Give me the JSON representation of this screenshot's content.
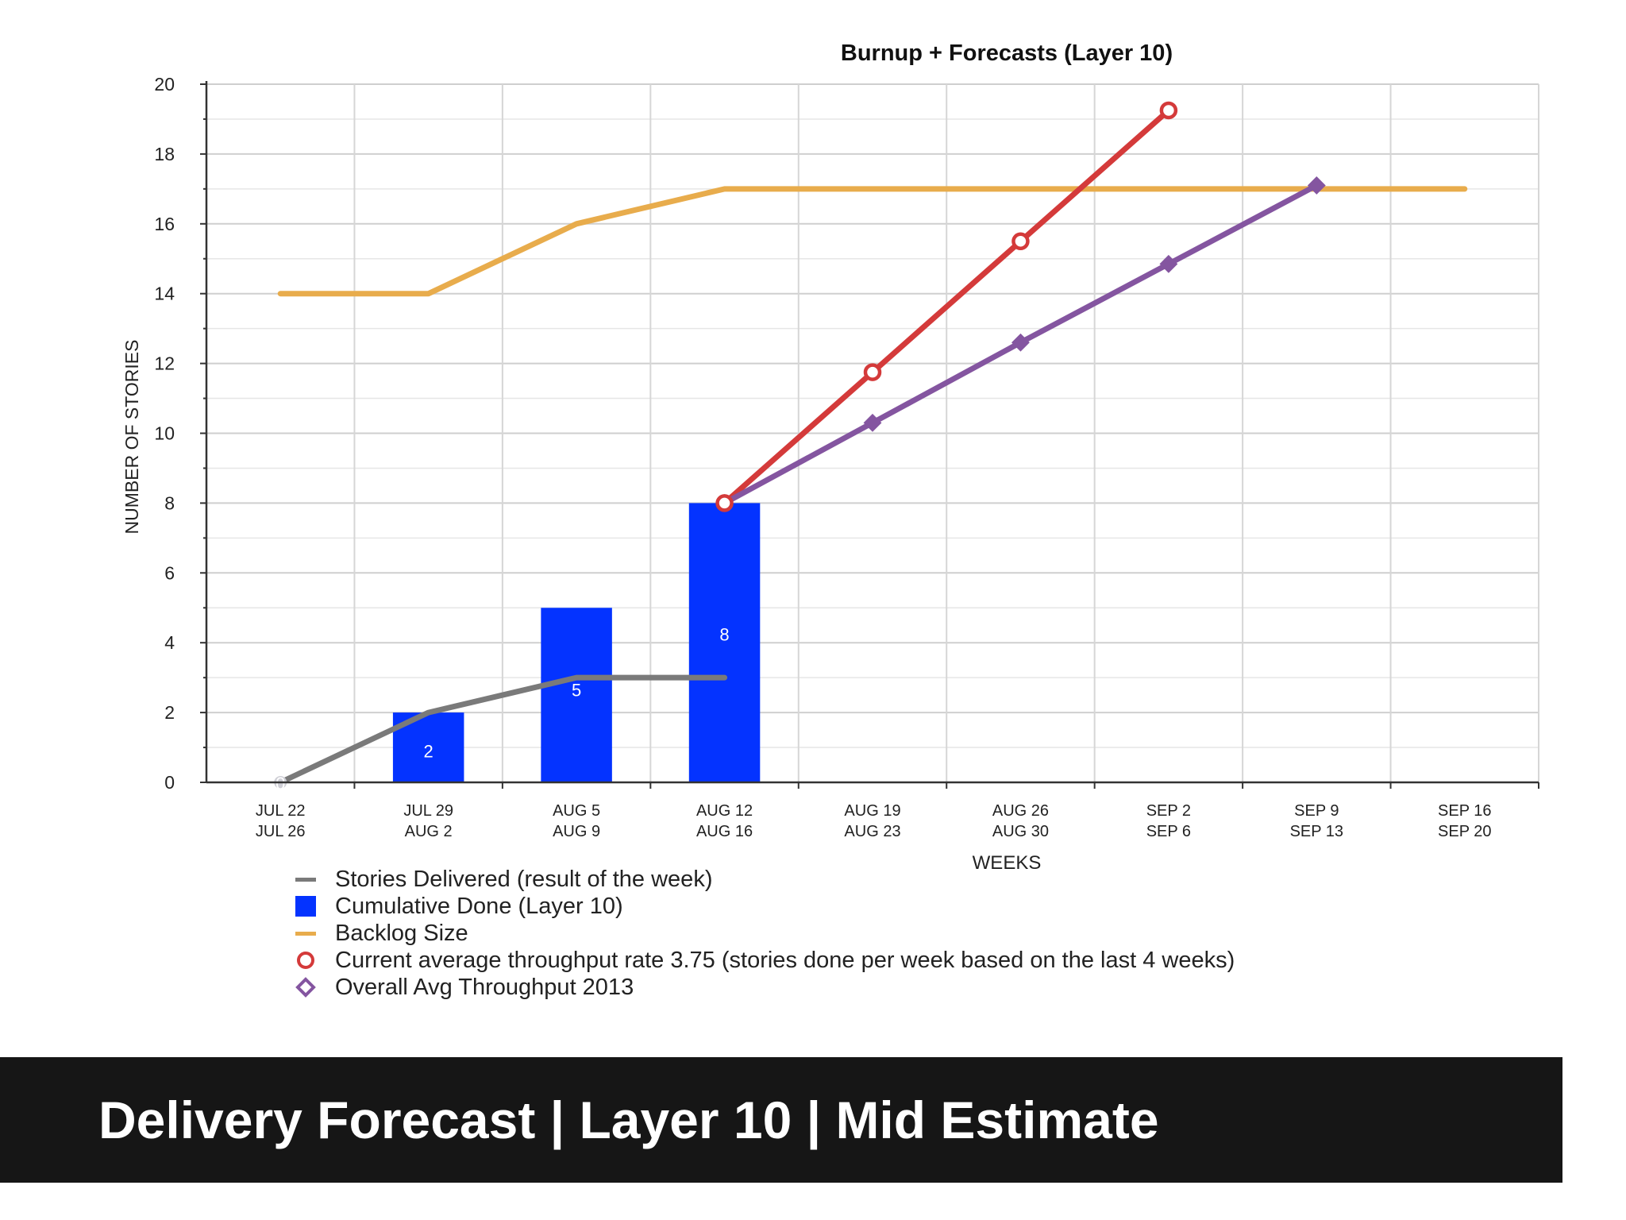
{
  "chart_data": {
    "type": "bar",
    "title": "Burnup + Forecasts (Layer 10)",
    "xlabel": "WEEKS",
    "ylabel": "NUMBER OF STORIES",
    "ylim": [
      0,
      20
    ],
    "yticks": [
      0,
      2,
      4,
      6,
      8,
      10,
      12,
      14,
      16,
      18,
      20
    ],
    "grid": true,
    "legend_position": "bottom-left",
    "categories": [
      [
        "JUL 22",
        "JUL 26"
      ],
      [
        "JUL 29",
        "AUG 2"
      ],
      [
        "AUG 5",
        "AUG 9"
      ],
      [
        "AUG 12",
        "AUG 16"
      ],
      [
        "AUG 19",
        "AUG 23"
      ],
      [
        "AUG 26",
        "AUG 30"
      ],
      [
        "SEP 2",
        "SEP 6"
      ],
      [
        "SEP 9",
        "SEP 13"
      ],
      [
        "SEP 16",
        "SEP 20"
      ]
    ],
    "series": [
      {
        "name": "Stories Delivered (result of the week)",
        "kind": "line",
        "color": "#7a7a7a",
        "values": [
          0,
          2,
          3,
          3,
          null,
          null,
          null,
          null,
          null
        ],
        "data_labels": [
          "0",
          null,
          null,
          null,
          null,
          null,
          null,
          null,
          null
        ]
      },
      {
        "name": "Cumulative Done (Layer  10)",
        "kind": "bar",
        "color": "#0433ff",
        "values": [
          0,
          2,
          5,
          8,
          null,
          null,
          null,
          null,
          null
        ],
        "data_labels": [
          null,
          "2",
          "5",
          "8",
          null,
          null,
          null,
          null,
          null
        ]
      },
      {
        "name": "Backlog Size",
        "kind": "line",
        "color": "#e8ac4c",
        "values": [
          14,
          14,
          16,
          17,
          17,
          17,
          17,
          17,
          17
        ]
      },
      {
        "name": "Current average throughput rate 3.75 (stories done per week based on the last 4 weeks)",
        "kind": "line",
        "marker": "circle",
        "color": "#d43a3a",
        "values": [
          null,
          null,
          null,
          8,
          11.75,
          15.5,
          19.25,
          null,
          null
        ]
      },
      {
        "name": "Overall Avg Throughput 2013",
        "kind": "line",
        "marker": "diamond",
        "color": "#8455a0",
        "values": [
          null,
          null,
          null,
          8,
          10.3,
          12.6,
          14.85,
          17.1,
          null
        ]
      }
    ]
  },
  "caption": "Delivery Forecast | Layer 10 | Mid Estimate"
}
